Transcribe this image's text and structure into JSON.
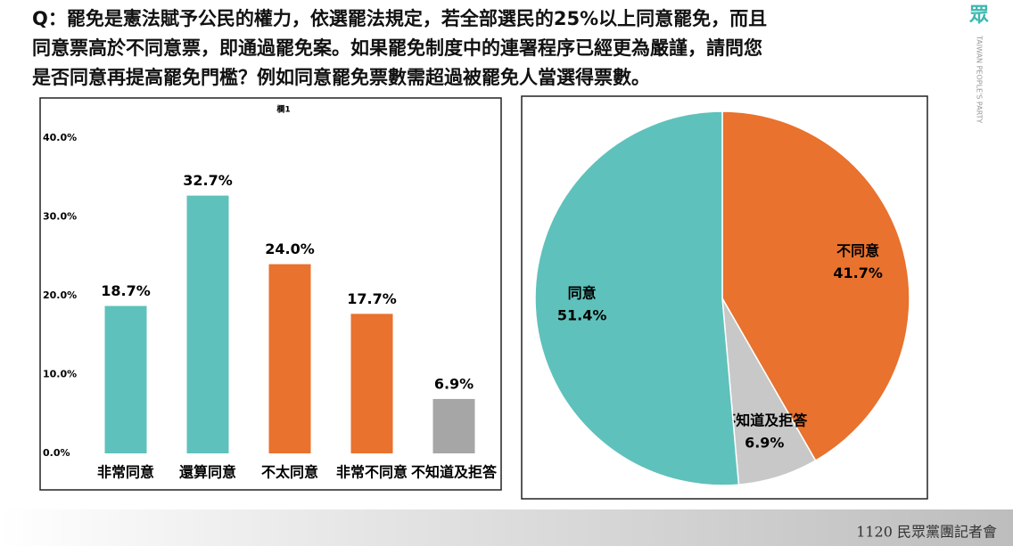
{
  "question": [
    "Q：罷免是憲法賦予公民的權力，依選罷法規定，若全部選民的25%以上同意罷免，而且",
    "同意票高於不同意票，即通過罷免案。如果罷免制度中的連署程序已經更為嚴謹，請問您",
    "是否同意再提高罷免門檻？例如同意罷免票數需超過被罷免人當選得票數。"
  ],
  "logo": {
    "mark": "眾",
    "text": "TAIWAN PEOPLE'S PARTY"
  },
  "footer": "1120 民眾黨團記者會",
  "chart_data": [
    {
      "type": "bar",
      "title": "欄1",
      "categories": [
        "非常同意",
        "還算同意",
        "不太同意",
        "非常不同意",
        "不知道及拒答"
      ],
      "values": [
        18.7,
        32.7,
        24.0,
        17.7,
        6.9
      ],
      "value_labels": [
        "18.7%",
        "32.7%",
        "24.0%",
        "17.7%",
        "6.9%"
      ],
      "colors": [
        "#5fc1bb",
        "#5fc1bb",
        "#e8722e",
        "#e8722e",
        "#a6a6a6"
      ],
      "ylim": [
        0,
        40
      ],
      "yticks": [
        {
          "value": 0,
          "label": "0.0%"
        },
        {
          "value": 10,
          "label": "10.0%"
        },
        {
          "value": 20,
          "label": "20.0%"
        },
        {
          "value": 30,
          "label": "30.0%"
        },
        {
          "value": 40,
          "label": "40.0%"
        }
      ]
    },
    {
      "type": "pie",
      "categories": [
        "不同意",
        "不知道及拒答",
        "同意"
      ],
      "values": [
        41.7,
        6.9,
        51.4
      ],
      "value_labels": [
        "41.7%",
        "6.9%",
        "51.4%"
      ],
      "colors": [
        "#e8722e",
        "#c8c8c8",
        "#5fc1bb"
      ]
    }
  ]
}
